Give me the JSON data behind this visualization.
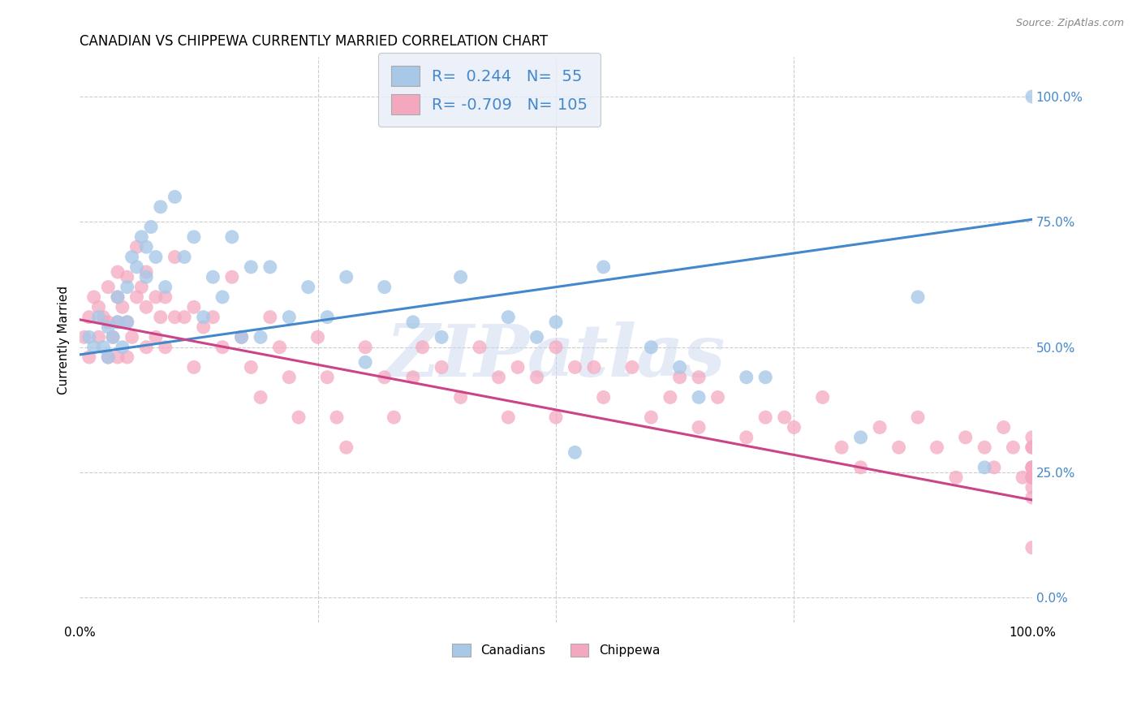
{
  "title": "CANADIAN VS CHIPPEWA CURRENTLY MARRIED CORRELATION CHART",
  "source": "Source: ZipAtlas.com",
  "ylabel": "Currently Married",
  "watermark": "ZIPatlas",
  "blue_R": 0.244,
  "blue_N": 55,
  "pink_R": -0.709,
  "pink_N": 105,
  "blue_color": "#a8c8e8",
  "pink_color": "#f4a8c0",
  "blue_line_color": "#4488cc",
  "pink_line_color": "#cc4488",
  "legend_bg": "#e8eef8",
  "right_tick_color": "#4488cc",
  "title_fontsize": 12,
  "label_fontsize": 11,
  "tick_fontsize": 11,
  "legend_fontsize": 14,
  "ytick_values": [
    0.0,
    0.25,
    0.5,
    0.75,
    1.0
  ],
  "ytick_labels": [
    "0.0%",
    "25.0%",
    "50.0%",
    "75.0%",
    "100.0%"
  ],
  "xtick_values": [
    0.0,
    0.25,
    0.5,
    0.75,
    1.0
  ],
  "xtick_labels": [
    "0.0%",
    "",
    "",
    "",
    "100.0%"
  ],
  "blue_line_x0": 0.0,
  "blue_line_y0": 0.485,
  "blue_line_x1": 1.0,
  "blue_line_y1": 0.755,
  "pink_line_x0": 0.0,
  "pink_line_y0": 0.555,
  "pink_line_x1": 1.0,
  "pink_line_y1": 0.195,
  "blue_x": [
    0.01,
    0.015,
    0.02,
    0.025,
    0.03,
    0.03,
    0.035,
    0.04,
    0.04,
    0.045,
    0.05,
    0.05,
    0.055,
    0.06,
    0.065,
    0.07,
    0.07,
    0.075,
    0.08,
    0.085,
    0.09,
    0.1,
    0.11,
    0.12,
    0.13,
    0.14,
    0.15,
    0.16,
    0.17,
    0.18,
    0.19,
    0.2,
    0.22,
    0.24,
    0.26,
    0.28,
    0.3,
    0.32,
    0.35,
    0.38,
    0.4,
    0.45,
    0.48,
    0.5,
    0.52,
    0.55,
    0.6,
    0.63,
    0.65,
    0.7,
    0.72,
    0.82,
    0.88,
    0.95,
    1.0
  ],
  "blue_y": [
    0.52,
    0.5,
    0.56,
    0.5,
    0.54,
    0.48,
    0.52,
    0.6,
    0.55,
    0.5,
    0.62,
    0.55,
    0.68,
    0.66,
    0.72,
    0.7,
    0.64,
    0.74,
    0.68,
    0.78,
    0.62,
    0.8,
    0.68,
    0.72,
    0.56,
    0.64,
    0.6,
    0.72,
    0.52,
    0.66,
    0.52,
    0.66,
    0.56,
    0.62,
    0.56,
    0.64,
    0.47,
    0.62,
    0.55,
    0.52,
    0.64,
    0.56,
    0.52,
    0.55,
    0.29,
    0.66,
    0.5,
    0.46,
    0.4,
    0.44,
    0.44,
    0.32,
    0.6,
    0.26,
    1.0
  ],
  "pink_x": [
    0.005,
    0.01,
    0.01,
    0.015,
    0.02,
    0.02,
    0.025,
    0.03,
    0.03,
    0.03,
    0.035,
    0.04,
    0.04,
    0.04,
    0.04,
    0.045,
    0.05,
    0.05,
    0.05,
    0.055,
    0.06,
    0.06,
    0.065,
    0.07,
    0.07,
    0.07,
    0.08,
    0.08,
    0.085,
    0.09,
    0.09,
    0.1,
    0.1,
    0.11,
    0.12,
    0.12,
    0.13,
    0.14,
    0.15,
    0.16,
    0.17,
    0.18,
    0.19,
    0.2,
    0.21,
    0.22,
    0.23,
    0.25,
    0.26,
    0.27,
    0.28,
    0.3,
    0.32,
    0.33,
    0.35,
    0.36,
    0.38,
    0.4,
    0.42,
    0.44,
    0.45,
    0.46,
    0.48,
    0.5,
    0.5,
    0.52,
    0.54,
    0.55,
    0.58,
    0.6,
    0.62,
    0.63,
    0.65,
    0.65,
    0.67,
    0.7,
    0.72,
    0.74,
    0.75,
    0.78,
    0.8,
    0.82,
    0.84,
    0.86,
    0.88,
    0.9,
    0.92,
    0.93,
    0.95,
    0.96,
    0.97,
    0.98,
    0.99,
    1.0,
    1.0,
    1.0,
    1.0,
    1.0,
    1.0,
    1.0,
    1.0,
    1.0,
    1.0,
    1.0,
    1.0
  ],
  "pink_y": [
    0.52,
    0.56,
    0.48,
    0.6,
    0.58,
    0.52,
    0.56,
    0.62,
    0.55,
    0.48,
    0.52,
    0.65,
    0.6,
    0.55,
    0.48,
    0.58,
    0.64,
    0.55,
    0.48,
    0.52,
    0.7,
    0.6,
    0.62,
    0.65,
    0.58,
    0.5,
    0.6,
    0.52,
    0.56,
    0.6,
    0.5,
    0.68,
    0.56,
    0.56,
    0.58,
    0.46,
    0.54,
    0.56,
    0.5,
    0.64,
    0.52,
    0.46,
    0.4,
    0.56,
    0.5,
    0.44,
    0.36,
    0.52,
    0.44,
    0.36,
    0.3,
    0.5,
    0.44,
    0.36,
    0.44,
    0.5,
    0.46,
    0.4,
    0.5,
    0.44,
    0.36,
    0.46,
    0.44,
    0.36,
    0.5,
    0.46,
    0.46,
    0.4,
    0.46,
    0.36,
    0.4,
    0.44,
    0.44,
    0.34,
    0.4,
    0.32,
    0.36,
    0.36,
    0.34,
    0.4,
    0.3,
    0.26,
    0.34,
    0.3,
    0.36,
    0.3,
    0.24,
    0.32,
    0.3,
    0.26,
    0.34,
    0.3,
    0.24,
    0.32,
    0.26,
    0.24,
    0.3,
    0.26,
    0.2,
    0.1,
    0.24,
    0.3,
    0.26,
    0.24,
    0.22
  ]
}
